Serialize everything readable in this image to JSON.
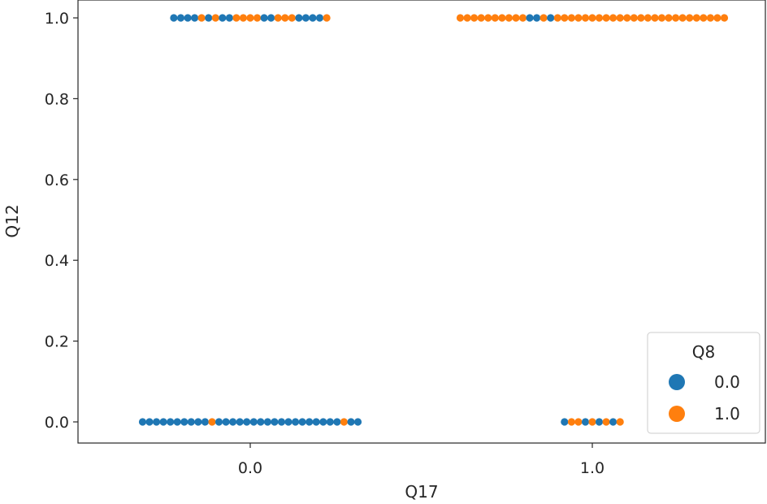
{
  "chart_data": {
    "type": "scatter",
    "subtype": "swarm",
    "title": "",
    "xlabel": "Q17",
    "ylabel": "Q12",
    "x_categories": [
      "0.0",
      "1.0"
    ],
    "x_tick_labels": [
      "0.0",
      "1.0"
    ],
    "y_tick_labels": [
      "0.0",
      "0.2",
      "0.4",
      "0.6",
      "0.8",
      "1.0"
    ],
    "y_ticks": [
      0.0,
      0.2,
      0.4,
      0.6,
      0.8,
      1.0
    ],
    "ylim": [
      0.0,
      1.0
    ],
    "grid": false,
    "legend": {
      "title": "Q8",
      "placement": "lower-right",
      "entries": [
        {
          "label": "0.0",
          "color": "#1f77b4"
        },
        {
          "label": "1.0",
          "color": "#ff7f0e"
        }
      ]
    },
    "hue_colors": {
      "0.0": "#1f77b4",
      "1.0": "#ff7f0e"
    },
    "groups": [
      {
        "x": "0.0",
        "y": 1.0,
        "hue_sequence": [
          "0.0",
          "0.0",
          "0.0",
          "0.0",
          "1.0",
          "0.0",
          "1.0",
          "0.0",
          "0.0",
          "1.0",
          "1.0",
          "1.0",
          "1.0",
          "0.0",
          "0.0",
          "1.0",
          "1.0",
          "1.0",
          "0.0",
          "0.0",
          "0.0",
          "0.0",
          "1.0"
        ]
      },
      {
        "x": "0.0",
        "y": 0.0,
        "hue_sequence": [
          "0.0",
          "0.0",
          "0.0",
          "0.0",
          "0.0",
          "0.0",
          "0.0",
          "0.0",
          "0.0",
          "0.0",
          "1.0",
          "0.0",
          "0.0",
          "0.0",
          "0.0",
          "0.0",
          "0.0",
          "0.0",
          "0.0",
          "0.0",
          "0.0",
          "0.0",
          "0.0",
          "0.0",
          "0.0",
          "0.0",
          "0.0",
          "0.0",
          "0.0",
          "1.0",
          "0.0",
          "0.0"
        ]
      },
      {
        "x": "1.0",
        "y": 1.0,
        "hue_sequence": [
          "1.0",
          "1.0",
          "1.0",
          "1.0",
          "1.0",
          "1.0",
          "1.0",
          "1.0",
          "1.0",
          "1.0",
          "0.0",
          "0.0",
          "1.0",
          "0.0",
          "1.0",
          "1.0",
          "1.0",
          "1.0",
          "1.0",
          "1.0",
          "1.0",
          "1.0",
          "1.0",
          "1.0",
          "1.0",
          "1.0",
          "1.0",
          "1.0",
          "1.0",
          "1.0",
          "1.0",
          "1.0",
          "1.0",
          "1.0",
          "1.0",
          "1.0",
          "1.0",
          "1.0",
          "1.0"
        ]
      },
      {
        "x": "1.0",
        "y": 0.0,
        "hue_sequence": [
          "0.0",
          "1.0",
          "1.0",
          "0.0",
          "1.0",
          "0.0",
          "1.0",
          "0.0",
          "1.0"
        ]
      }
    ]
  }
}
